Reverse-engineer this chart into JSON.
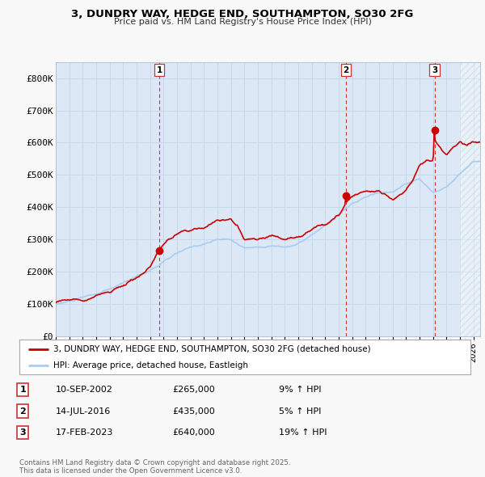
{
  "title": "3, DUNDRY WAY, HEDGE END, SOUTHAMPTON, SO30 2FG",
  "subtitle": "Price paid vs. HM Land Registry's House Price Index (HPI)",
  "bg_color": "#f8f8f8",
  "plot_bg_color": "#dce8f5",
  "ylabel": "",
  "xlabel": "",
  "ylim": [
    0,
    850000
  ],
  "yticks": [
    0,
    100000,
    200000,
    300000,
    400000,
    500000,
    600000,
    700000,
    800000
  ],
  "ytick_labels": [
    "£0",
    "£100K",
    "£200K",
    "£300K",
    "£400K",
    "£500K",
    "£600K",
    "£700K",
    "£800K"
  ],
  "sale_dates": [
    2002.69,
    2016.53,
    2023.12
  ],
  "sale_prices": [
    265000,
    435000,
    640000
  ],
  "sale_labels": [
    "1",
    "2",
    "3"
  ],
  "sale_color": "#cc0000",
  "hpi_line_color": "#aaccee",
  "price_line_color": "#cc0000",
  "grid_color": "#c5d8ea",
  "dashed_line_color": "#cc3333",
  "legend_entries": [
    "3, DUNDRY WAY, HEDGE END, SOUTHAMPTON, SO30 2FG (detached house)",
    "HPI: Average price, detached house, Eastleigh"
  ],
  "table_rows": [
    [
      "1",
      "10-SEP-2002",
      "£265,000",
      "9% ↑ HPI"
    ],
    [
      "2",
      "14-JUL-2016",
      "£435,000",
      "5% ↑ HPI"
    ],
    [
      "3",
      "17-FEB-2023",
      "£640,000",
      "19% ↑ HPI"
    ]
  ],
  "footer": "Contains HM Land Registry data © Crown copyright and database right 2025.\nThis data is licensed under the Open Government Licence v3.0.",
  "x_start_year": 1995.0,
  "x_end_year": 2026.5,
  "anchor_hpi_years": [
    1995,
    1996,
    1997,
    1998,
    1999,
    2000,
    2001,
    2002,
    2003,
    2004,
    2005,
    2006,
    2007,
    2008,
    2009,
    2010,
    2011,
    2012,
    2013,
    2014,
    2015,
    2016,
    2017,
    2018,
    2019,
    2020,
    2021,
    2022,
    2022.5,
    2023,
    2023.5,
    2024,
    2024.5,
    2025,
    2025.5,
    2026
  ],
  "anchor_hpi_vals": [
    100000,
    108000,
    118000,
    128000,
    140000,
    158000,
    180000,
    200000,
    225000,
    250000,
    265000,
    278000,
    290000,
    290000,
    265000,
    268000,
    275000,
    270000,
    280000,
    305000,
    330000,
    365000,
    395000,
    415000,
    430000,
    430000,
    460000,
    475000,
    450000,
    430000,
    440000,
    450000,
    470000,
    490000,
    510000,
    530000
  ],
  "anchor_pp_years": [
    1995,
    1996,
    1997,
    1998,
    1999,
    2000,
    2001,
    2002,
    2002.69,
    2003,
    2004,
    2005,
    2006,
    2007,
    2008,
    2008.5,
    2009,
    2010,
    2011,
    2012,
    2013,
    2014,
    2015,
    2016,
    2016.53,
    2017,
    2018,
    2019,
    2019.5,
    2020,
    2021,
    2021.5,
    2022,
    2022.5,
    2023,
    2023.12,
    2023.5,
    2024,
    2024.5,
    2025,
    2025.5,
    2026
  ],
  "anchor_pp_vals": [
    104000,
    112000,
    122000,
    134000,
    148000,
    168000,
    192000,
    218000,
    265000,
    280000,
    310000,
    320000,
    335000,
    360000,
    355000,
    340000,
    300000,
    305000,
    310000,
    305000,
    315000,
    340000,
    365000,
    400000,
    435000,
    460000,
    475000,
    480000,
    470000,
    455000,
    490000,
    520000,
    565000,
    580000,
    575000,
    640000,
    620000,
    595000,
    620000,
    640000,
    630000,
    640000
  ]
}
